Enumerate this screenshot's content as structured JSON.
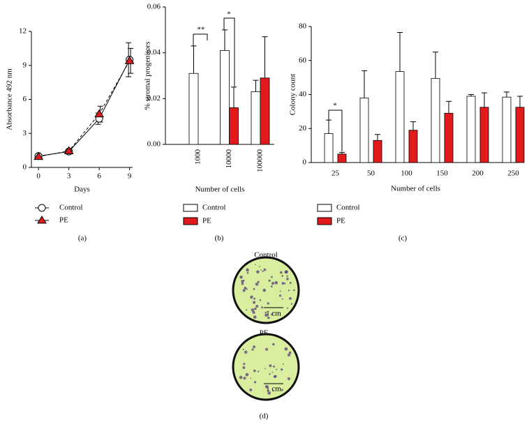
{
  "chart_data": [
    {
      "type": "line",
      "panel": "(a)",
      "x_label": "Days",
      "y_label": "Absorbance 492 nm",
      "x": [
        0,
        3,
        6,
        9
      ],
      "xlim": [
        -0.7,
        9.3
      ],
      "xticks": [
        0,
        3,
        6,
        9
      ],
      "ylim": [
        0,
        12
      ],
      "yticks": [
        0,
        3,
        6,
        9,
        12
      ],
      "series": [
        {
          "name": "Control",
          "color": "#ffffff",
          "marker": "circle",
          "linestyle": "solid",
          "values": [
            1.0,
            1.4,
            4.3,
            9.5
          ],
          "errors": [
            0.1,
            0.1,
            0.5,
            1.5
          ]
        },
        {
          "name": "PE",
          "color": "#e31a1c",
          "marker": "triangle",
          "linestyle": "dashed",
          "values": [
            0.95,
            1.45,
            4.7,
            9.4
          ],
          "errors": [
            0.1,
            0.1,
            0.7,
            1.1
          ]
        }
      ]
    },
    {
      "type": "bar",
      "panel": "(b)",
      "x_label": "Number of cells",
      "y_label": "% stromal progenitors",
      "categories": [
        "1000",
        "10000",
        "100000"
      ],
      "ylim": [
        0,
        0.06
      ],
      "yticks": [
        {
          "value": 0,
          "label": "0.00"
        },
        {
          "value": 0.02,
          "label": "0.02"
        },
        {
          "value": 0.04,
          "label": "0.04"
        },
        {
          "value": 0.06,
          "label": "0.06"
        }
      ],
      "series": [
        {
          "name": "Control",
          "color": "#ffffff",
          "values": [
            0.031,
            0.041,
            0.023
          ],
          "errors": [
            0.012,
            0.009,
            0.005
          ]
        },
        {
          "name": "PE",
          "color": "#e31a1c",
          "values": [
            null,
            0.016,
            0.029
          ],
          "errors": [
            null,
            0.009,
            0.018
          ]
        }
      ],
      "annotations": [
        "**",
        "*"
      ]
    },
    {
      "type": "bar",
      "panel": "(c)",
      "x_label": "Number of cells",
      "y_label": "Colony count",
      "categories": [
        "25",
        "50",
        "100",
        "150",
        "200",
        "250"
      ],
      "ylim": [
        0,
        80
      ],
      "yticks": [
        0,
        20,
        40,
        60,
        80
      ],
      "series": [
        {
          "name": "Control",
          "color": "#ffffff",
          "values": [
            17,
            38,
            53.5,
            49.5,
            39,
            38.5
          ],
          "errors": [
            8,
            16,
            23,
            15.5,
            1,
            3
          ]
        },
        {
          "name": "PE",
          "color": "#e31a1c",
          "values": [
            5,
            13,
            19,
            29,
            32.5,
            32.5
          ],
          "errors": [
            1,
            3.5,
            5,
            7,
            8.5,
            6.5
          ]
        }
      ],
      "annotations": [
        "*"
      ]
    }
  ],
  "image_panel": {
    "panel": "(d)",
    "images": [
      {
        "title": "Control",
        "scale_bar": "1 cm"
      },
      {
        "title": "PE",
        "scale_bar": "1 cm"
      }
    ]
  }
}
